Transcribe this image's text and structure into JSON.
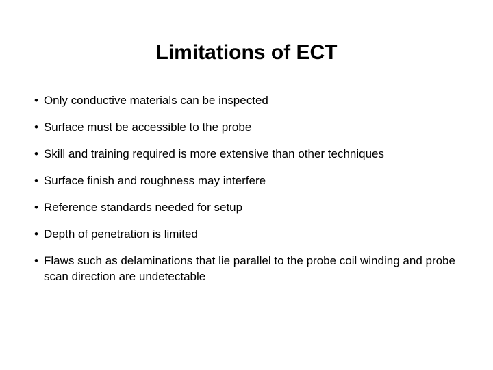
{
  "slide": {
    "title": "Limitations of ECT",
    "bullets": [
      "Only conductive materials can be inspected",
      "Surface must be accessible to the probe",
      "Skill and training required is more extensive than other techniques",
      "Surface finish and roughness may interfere",
      "Reference standards needed for setup",
      "Depth of penetration is limited",
      "Flaws such as delaminations that lie parallel to the probe coil winding and probe scan direction are undetectable"
    ],
    "background_color": "#ffffff",
    "text_color": "#000000",
    "title_fontsize": 30,
    "body_fontsize": 17,
    "font_family": "Verdana, Geneva, sans-serif",
    "bullet_char": "•"
  }
}
